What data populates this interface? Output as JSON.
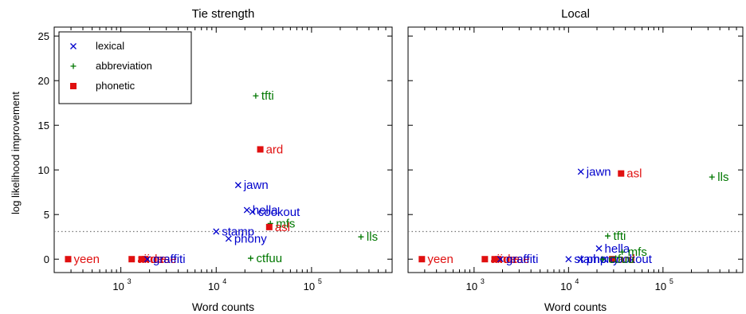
{
  "chart_data": {
    "type": "scatter",
    "xscale": "log",
    "xlim": [
      200,
      700000
    ],
    "ylim": [
      -1.5,
      26
    ],
    "yticks": [
      0,
      5,
      10,
      15,
      20,
      25
    ],
    "xticks": [
      {
        "value": 1000,
        "base": "10",
        "exp": "3"
      },
      {
        "value": 10000,
        "base": "10",
        "exp": "4"
      },
      {
        "value": 100000,
        "base": "10",
        "exp": "5"
      }
    ],
    "xlabel": "Word counts",
    "ylabel": "log likelihood improvement",
    "baseline": 3.1,
    "legend": {
      "placement": "top-left",
      "entries": [
        {
          "label": "lexical",
          "marker": "×",
          "color": "#0000cc"
        },
        {
          "label": "abbreviation",
          "marker": "+",
          "color": "#007700"
        },
        {
          "label": "phonetic",
          "marker": "■",
          "color": "#e01010"
        }
      ]
    },
    "series_colors": {
      "lexical": "#0000cc",
      "abbreviation": "#007700",
      "phonetic": "#e01010"
    },
    "panels": [
      {
        "title": "Tie strength",
        "points": [
          {
            "label": "yeen",
            "category": "phonetic",
            "x": 280,
            "y": 0.0
          },
          {
            "label": "ainna",
            "category": "phonetic",
            "x": 1300,
            "y": 0.0
          },
          {
            "label": "ion",
            "category": "phonetic",
            "x": 1650,
            "y": 0.0
          },
          {
            "label": "dese",
            "category": "phonetic",
            "x": 1800,
            "y": 0.0
          },
          {
            "label": "graffiti",
            "category": "lexical",
            "x": 1900,
            "y": 0.0
          },
          {
            "label": "tfti",
            "category": "abbreviation",
            "x": 26000,
            "y": 18.3
          },
          {
            "label": "ard",
            "category": "phonetic",
            "x": 29000,
            "y": 12.3
          },
          {
            "label": "jawn",
            "category": "lexical",
            "x": 17000,
            "y": 8.3
          },
          {
            "label": "hella",
            "category": "lexical",
            "x": 21000,
            "y": 5.5
          },
          {
            "label": "cookout",
            "category": "lexical",
            "x": 24000,
            "y": 5.3
          },
          {
            "label": "mfs",
            "category": "abbreviation",
            "x": 37000,
            "y": 4.0
          },
          {
            "label": "asl",
            "category": "phonetic",
            "x": 36000,
            "y": 3.6
          },
          {
            "label": "stamp",
            "category": "lexical",
            "x": 10000,
            "y": 3.1
          },
          {
            "label": "phony",
            "category": "lexical",
            "x": 13500,
            "y": 2.3
          },
          {
            "label": "lls",
            "category": "abbreviation",
            "x": 330000,
            "y": 2.5
          },
          {
            "label": "ctfuu",
            "category": "abbreviation",
            "x": 23000,
            "y": 0.1
          }
        ]
      },
      {
        "title": "Local",
        "points": [
          {
            "label": "yeen",
            "category": "phonetic",
            "x": 280,
            "y": 0.0
          },
          {
            "label": "ainna",
            "category": "phonetic",
            "x": 1300,
            "y": 0.0
          },
          {
            "label": "ion",
            "category": "phonetic",
            "x": 1650,
            "y": 0.0
          },
          {
            "label": "dese",
            "category": "phonetic",
            "x": 1800,
            "y": 0.0
          },
          {
            "label": "graffiti",
            "category": "lexical",
            "x": 1900,
            "y": 0.0
          },
          {
            "label": "jawn",
            "category": "lexical",
            "x": 13500,
            "y": 9.8
          },
          {
            "label": "asl",
            "category": "phonetic",
            "x": 36000,
            "y": 9.6
          },
          {
            "label": "lls",
            "category": "abbreviation",
            "x": 330000,
            "y": 9.2
          },
          {
            "label": "tfti",
            "category": "abbreviation",
            "x": 26000,
            "y": 2.6
          },
          {
            "label": "hella",
            "category": "lexical",
            "x": 21000,
            "y": 1.2
          },
          {
            "label": "mfs",
            "category": "abbreviation",
            "x": 37000,
            "y": 0.8
          },
          {
            "label": "stamp",
            "category": "lexical",
            "x": 10000,
            "y": 0.0
          },
          {
            "label": "phony",
            "category": "lexical",
            "x": 13500,
            "y": 0.0
          },
          {
            "label": "ard",
            "category": "phonetic",
            "x": 29000,
            "y": 0.0
          },
          {
            "label": "cookout",
            "category": "lexical",
            "x": 24000,
            "y": 0.0
          },
          {
            "label": "ctfuu",
            "category": "abbreviation",
            "x": 23000,
            "y": 0.0
          }
        ]
      }
    ]
  }
}
